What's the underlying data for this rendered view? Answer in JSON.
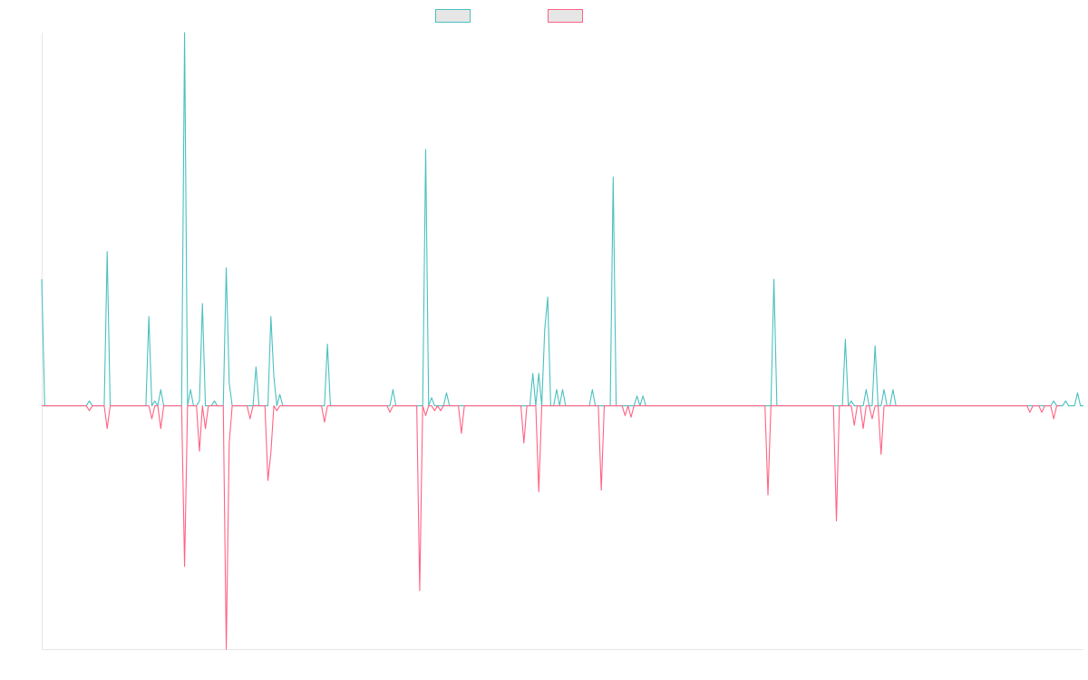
{
  "chart_data": {
    "type": "line",
    "title": "",
    "xlabel": "",
    "ylabel": "",
    "ylim": [
      -150,
      230
    ],
    "grid": false,
    "legend": "top-center",
    "series": [
      {
        "name": "",
        "color": "#4bc0c0",
        "values": [
          78,
          0,
          0,
          0,
          0,
          0,
          0,
          0,
          0,
          0,
          0,
          0,
          0,
          0,
          0,
          0,
          3,
          0,
          0,
          0,
          0,
          0,
          95,
          0,
          0,
          0,
          0,
          0,
          0,
          0,
          0,
          0,
          0,
          0,
          0,
          0,
          55,
          0,
          3,
          0,
          10,
          0,
          0,
          0,
          0,
          0,
          0,
          0,
          230,
          0,
          10,
          0,
          0,
          3,
          63,
          0,
          0,
          0,
          3,
          0,
          0,
          0,
          85,
          14,
          0,
          0,
          0,
          0,
          0,
          0,
          0,
          0,
          24,
          0,
          0,
          0,
          0,
          55,
          18,
          0,
          7,
          0,
          0,
          0,
          0,
          0,
          0,
          0,
          0,
          0,
          0,
          0,
          0,
          0,
          0,
          0,
          38,
          0,
          0,
          0,
          0,
          0,
          0,
          0,
          0,
          0,
          0,
          0,
          0,
          0,
          0,
          0,
          0,
          0,
          0,
          0,
          0,
          0,
          10,
          0,
          0,
          0,
          0,
          0,
          0,
          0,
          0,
          0,
          0,
          158,
          0,
          5,
          0,
          0,
          0,
          0,
          8,
          0,
          0,
          0,
          0,
          0,
          0,
          0,
          0,
          0,
          0,
          0,
          0,
          0,
          0,
          0,
          0,
          0,
          0,
          0,
          0,
          0,
          0,
          0,
          0,
          0,
          0,
          0,
          0,
          20,
          0,
          20,
          0,
          47,
          67,
          0,
          0,
          10,
          0,
          10,
          0,
          0,
          0,
          0,
          0,
          0,
          0,
          0,
          0,
          10,
          0,
          0,
          0,
          0,
          0,
          0,
          141,
          0,
          0,
          0,
          0,
          0,
          0,
          0,
          6,
          0,
          6,
          0,
          0,
          0,
          0,
          0,
          0,
          0,
          0,
          0,
          0,
          0,
          0,
          0,
          0,
          0,
          0,
          0,
          0,
          0,
          0,
          0,
          0,
          0,
          0,
          0,
          0,
          0,
          0,
          0,
          0,
          0,
          0,
          0,
          0,
          0,
          0,
          0,
          0,
          0,
          0,
          0,
          0,
          0,
          78,
          0,
          0,
          0,
          0,
          0,
          0,
          0,
          0,
          0,
          0,
          0,
          0,
          0,
          0,
          0,
          0,
          0,
          0,
          0,
          0,
          0,
          0,
          0,
          41,
          0,
          3,
          0,
          0,
          0,
          0,
          10,
          0,
          0,
          37,
          0,
          0,
          10,
          0,
          0,
          10,
          0,
          0,
          0,
          0,
          0,
          0,
          0,
          0,
          0,
          0,
          0,
          0,
          0,
          0,
          0,
          0,
          0,
          0,
          0,
          0,
          0,
          0,
          0,
          0,
          0,
          0,
          0,
          0,
          0,
          0,
          0,
          0,
          0,
          0,
          0,
          0,
          0,
          0,
          0,
          0,
          0,
          0,
          0,
          0,
          0,
          0,
          0,
          0,
          0,
          0,
          0,
          0,
          0,
          3,
          0,
          0,
          0,
          3,
          0,
          0,
          0,
          8,
          0,
          0
        ]
      },
      {
        "name": "",
        "color": "#ff6384",
        "values": [
          0,
          0,
          0,
          0,
          0,
          0,
          0,
          0,
          0,
          0,
          0,
          0,
          0,
          0,
          0,
          0,
          -3,
          0,
          0,
          0,
          0,
          0,
          -14,
          0,
          0,
          0,
          0,
          0,
          0,
          0,
          0,
          0,
          0,
          0,
          0,
          0,
          0,
          -8,
          0,
          0,
          -14,
          0,
          0,
          0,
          0,
          0,
          0,
          0,
          -99,
          0,
          0,
          0,
          0,
          -28,
          0,
          -14,
          0,
          0,
          0,
          0,
          0,
          0,
          -150,
          -23,
          0,
          0,
          0,
          0,
          0,
          0,
          -8,
          0,
          0,
          0,
          0,
          0,
          -46,
          -29,
          0,
          -3,
          0,
          0,
          0,
          0,
          0,
          0,
          0,
          0,
          0,
          0,
          0,
          0,
          0,
          0,
          0,
          -10,
          0,
          0,
          0,
          0,
          0,
          0,
          0,
          0,
          0,
          0,
          0,
          0,
          0,
          0,
          0,
          0,
          0,
          0,
          0,
          0,
          0,
          -4,
          0,
          0,
          0,
          0,
          0,
          0,
          0,
          0,
          0,
          -114,
          0,
          -6,
          0,
          0,
          -3,
          0,
          -3,
          0,
          0,
          0,
          0,
          0,
          0,
          -17,
          0,
          0,
          0,
          0,
          0,
          0,
          0,
          0,
          0,
          0,
          0,
          0,
          0,
          0,
          0,
          0,
          0,
          0,
          0,
          0,
          -23,
          0,
          0,
          0,
          0,
          -53,
          0,
          0,
          0,
          0,
          0,
          0,
          0,
          0,
          0,
          0,
          0,
          0,
          0,
          0,
          0,
          0,
          0,
          0,
          0,
          0,
          -52,
          0,
          0,
          0,
          0,
          0,
          0,
          0,
          -6,
          0,
          -7,
          0,
          0,
          0,
          0,
          0,
          0,
          0,
          0,
          0,
          0,
          0,
          0,
          0,
          0,
          0,
          0,
          0,
          0,
          0,
          0,
          0,
          0,
          0,
          0,
          0,
          0,
          0,
          0,
          0,
          0,
          0,
          0,
          0,
          0,
          0,
          0,
          0,
          0,
          0,
          0,
          0,
          0,
          0,
          0,
          0,
          -55,
          0,
          0,
          0,
          0,
          0,
          0,
          0,
          0,
          0,
          0,
          0,
          0,
          0,
          0,
          0,
          0,
          0,
          0,
          0,
          0,
          0,
          0,
          -71,
          0,
          0,
          0,
          0,
          0,
          -12,
          0,
          0,
          -14,
          0,
          0,
          -8,
          0,
          0,
          -30,
          0,
          0,
          0,
          0,
          0,
          0,
          0,
          0,
          0,
          0,
          0,
          0,
          0,
          0,
          0,
          0,
          0,
          0,
          0,
          0,
          0,
          0,
          0,
          0,
          0,
          0,
          0,
          0,
          0,
          0,
          0,
          0,
          0,
          0,
          0,
          0,
          0,
          0,
          0,
          0,
          0,
          0,
          0,
          0,
          0,
          0,
          0,
          0,
          0,
          -4,
          0,
          0,
          0,
          -4,
          0,
          0,
          0,
          -8,
          0,
          0
        ]
      }
    ]
  }
}
